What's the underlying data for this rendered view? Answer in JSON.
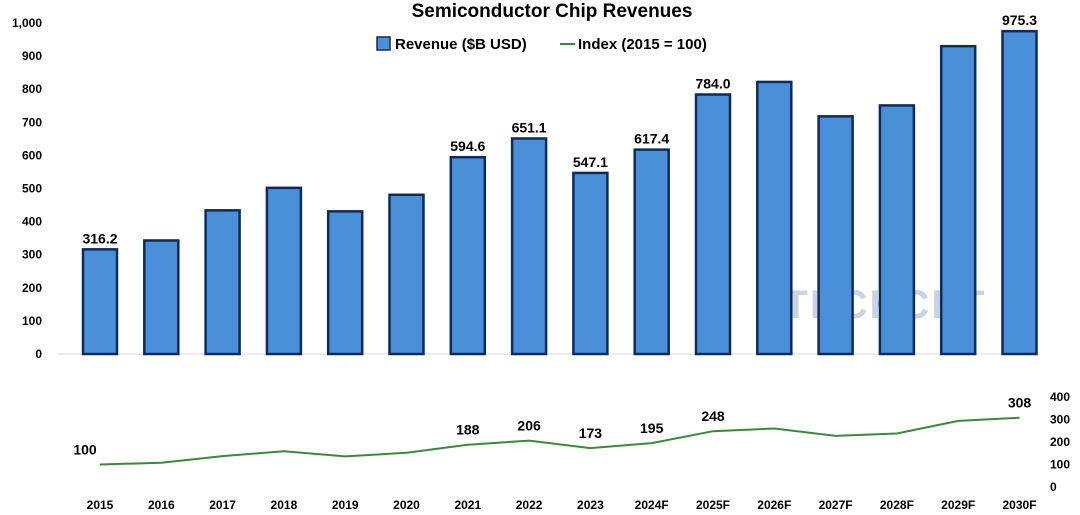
{
  "chart_data": {
    "type": "bar",
    "title": "Semiconductor Chip Revenues",
    "categories": [
      "2015",
      "2016",
      "2017",
      "2018",
      "2019",
      "2020",
      "2021",
      "2022",
      "2023",
      "2024F",
      "2025F",
      "2026F",
      "2027F",
      "2028F",
      "2029F",
      "2030F"
    ],
    "series": [
      {
        "name": "Revenue ($B USD)",
        "type": "bar",
        "color": "#4a90d9",
        "edge_color": "#0f2b5b",
        "values": [
          316.2,
          343,
          434,
          502,
          431,
          481,
          594.6,
          651.1,
          547.1,
          617.4,
          784.0,
          822,
          718,
          751,
          930,
          975.3
        ],
        "data_labels": [
          "316.2",
          "",
          "",
          "",
          "",
          "",
          "594.6",
          "651.1",
          "547.1",
          "617.4",
          "784.0",
          "",
          "",
          "",
          "",
          "975.3"
        ]
      },
      {
        "name": "Index (2015 = 100)",
        "type": "line",
        "color": "#3a8a3a",
        "values": [
          100,
          108,
          137,
          159,
          136,
          152,
          188,
          206,
          173,
          195,
          248,
          260,
          227,
          238,
          294,
          308
        ],
        "data_labels": [
          "100",
          "",
          "",
          "",
          "",
          "",
          "188",
          "206",
          "173",
          "195",
          "248",
          "",
          "",
          "",
          "",
          "308"
        ]
      }
    ],
    "y_axis_left": {
      "min": 0,
      "max": 1000,
      "ticks": [
        "0",
        "100",
        "200",
        "300",
        "400",
        "500",
        "600",
        "700",
        "800",
        "900",
        "1,000"
      ]
    },
    "y_axis_right": {
      "min": 0,
      "max": 400,
      "ticks": [
        "0",
        "100",
        "200",
        "300",
        "400"
      ]
    },
    "legend_position": "top-center",
    "grid": false,
    "watermark": "TECHCET"
  }
}
